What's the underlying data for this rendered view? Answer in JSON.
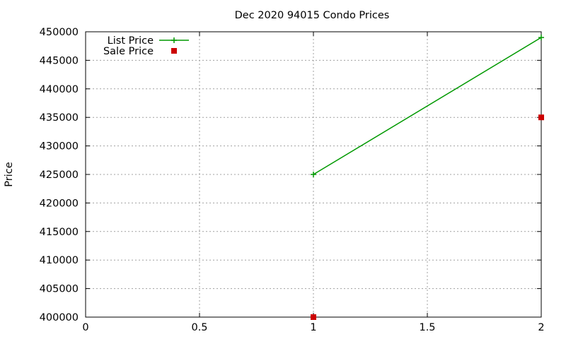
{
  "chart_data": {
    "type": "line",
    "title": "Dec 2020 94015 Condo Prices",
    "xlabel": "",
    "ylabel": "Price",
    "xlim": [
      0,
      2
    ],
    "ylim": [
      400000,
      450000
    ],
    "x_ticks": [
      0,
      0.5,
      1,
      1.5,
      2
    ],
    "x_tick_labels": [
      "0",
      "0.5",
      "1",
      "1.5",
      "2"
    ],
    "y_ticks": [
      400000,
      405000,
      410000,
      415000,
      420000,
      425000,
      430000,
      435000,
      440000,
      445000,
      450000
    ],
    "y_tick_labels": [
      "400000",
      "405000",
      "410000",
      "415000",
      "420000",
      "425000",
      "430000",
      "435000",
      "440000",
      "445000",
      "450000"
    ],
    "grid": true,
    "legend_position": "top-left",
    "series": [
      {
        "name": "List Price",
        "style": "line-points",
        "marker": "plus",
        "color": "#009900",
        "x": [
          1,
          2
        ],
        "y": [
          425000,
          449000
        ]
      },
      {
        "name": "Sale Price",
        "style": "points",
        "marker": "square",
        "color": "#cc0000",
        "x": [
          1,
          2
        ],
        "y": [
          400000,
          435000
        ]
      }
    ]
  }
}
